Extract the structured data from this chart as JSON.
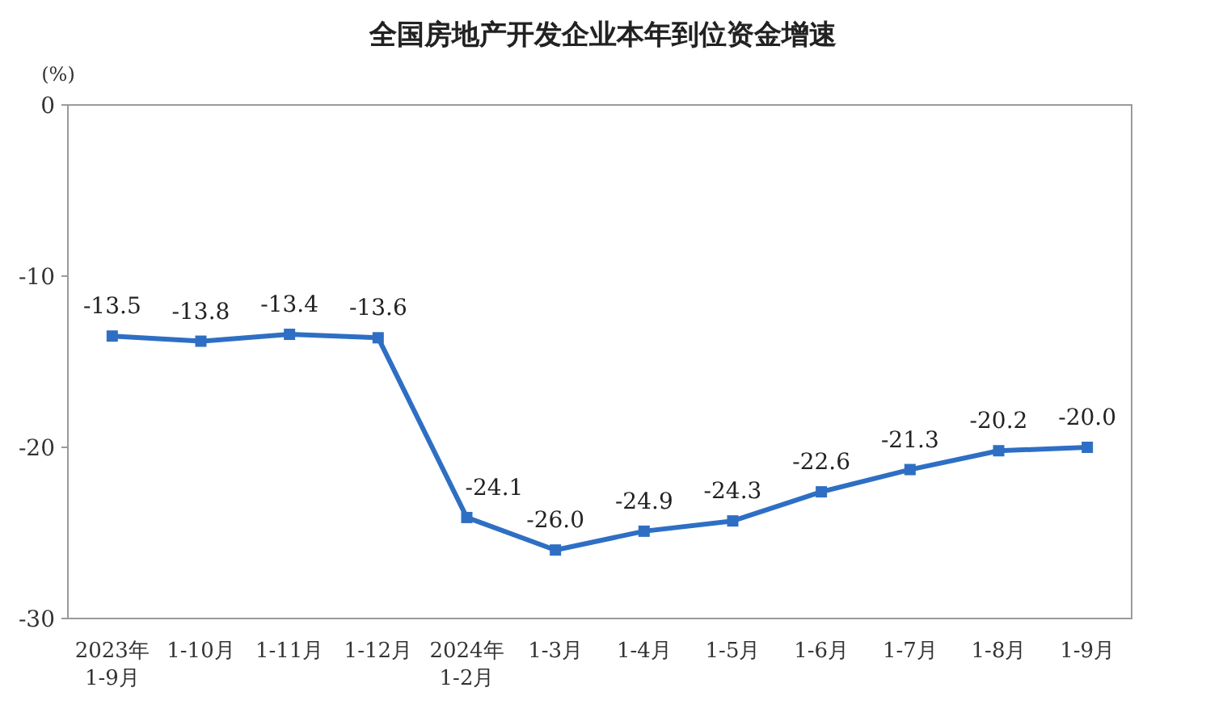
{
  "chart_data": {
    "type": "line",
    "title": "全国房地产开发企业本年到位资金增速",
    "ylabel": "(%)",
    "categories": [
      "2023年\n1-9月",
      "1-10月",
      "1-11月",
      "1-12月",
      "2024年\n1-2月",
      "1-3月",
      "1-4月",
      "1-5月",
      "1-6月",
      "1-7月",
      "1-8月",
      "1-9月"
    ],
    "series": [
      {
        "color": "#2e6fc4",
        "values": [
          -13.5,
          -13.8,
          -13.4,
          -13.6,
          -24.1,
          -26.0,
          -24.9,
          -24.3,
          -22.6,
          -21.3,
          -20.2,
          -20.0
        ],
        "value_labels": [
          "-13.5",
          "-13.8",
          "-13.4",
          "-13.6",
          "-24.1",
          "-26.0",
          "-24.9",
          "-24.3",
          "-22.6",
          "-21.3",
          "-20.2",
          "-20.0"
        ]
      }
    ],
    "ylim": [
      -30,
      0
    ],
    "yticks": [
      0,
      -10,
      -20,
      -30
    ],
    "marker": "square",
    "line_style": "solid",
    "grid": false
  }
}
